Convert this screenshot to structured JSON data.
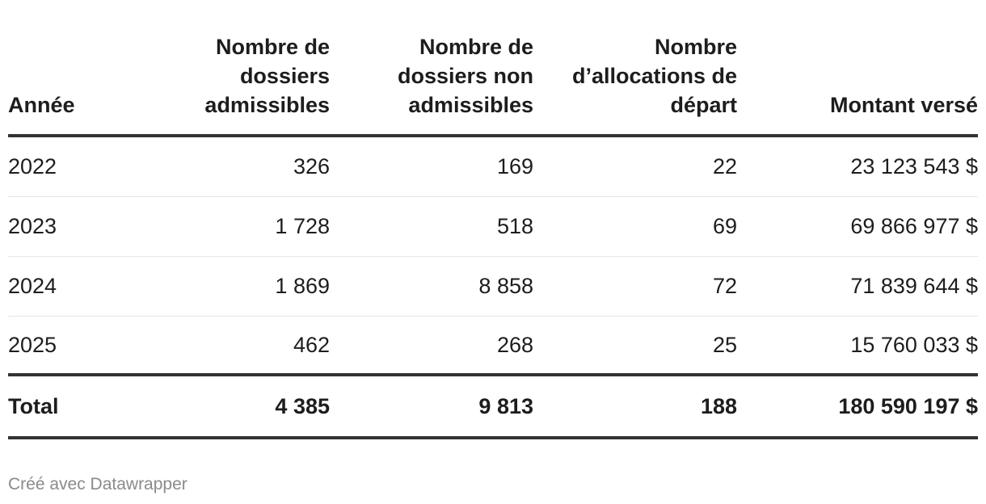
{
  "chart_data": {
    "type": "table",
    "columns": [
      "Année",
      "Nombre de dossiers admissibles",
      "Nombre de dossiers non admissibles",
      "Nombre d’allocations de départ",
      "Montant versé"
    ],
    "rows": [
      [
        "2022",
        "326",
        "169",
        "22",
        "23 123 543 $"
      ],
      [
        "2023",
        "1 728",
        "518",
        "69",
        "69 866 977 $"
      ],
      [
        "2024",
        "1 869",
        "8 858",
        "72",
        "71 839 644 $"
      ],
      [
        "2025",
        "462",
        "268",
        "25",
        "15 760 033 $"
      ]
    ],
    "total": [
      "Total",
      "4 385",
      "9 813",
      "188",
      "180 590 197 $"
    ]
  },
  "footer": "Créé avec Datawrapper"
}
